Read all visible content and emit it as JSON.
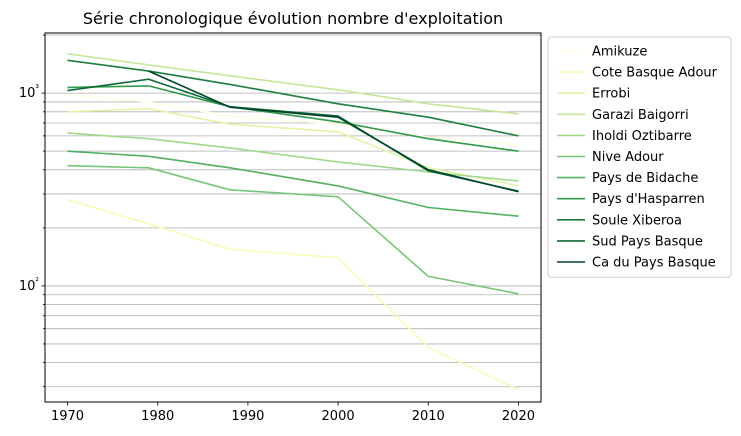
{
  "chart_data": {
    "type": "line",
    "title": "Série chronologique évolution nombre d'exploitation",
    "xlabel": "",
    "ylabel": "",
    "yscale": "log",
    "xlim": [
      1967.5,
      2022.5
    ],
    "ylim": [
      25,
      2050
    ],
    "x": [
      1970,
      1979,
      1988,
      2000,
      2010,
      2020
    ],
    "x_ticks": [
      "1970",
      "1980",
      "1990",
      "2000",
      "2010",
      "2020"
    ],
    "x_tick_values": [
      1970,
      1980,
      1990,
      2000,
      2010,
      2020
    ],
    "y_ticks": [
      "10²",
      "10³"
    ],
    "y_tick_values": [
      100,
      1000
    ],
    "grid": "y-major-and-minor",
    "legend_position": "outside-right",
    "series": [
      {
        "name": "Amikuze",
        "color": "#ffffe5",
        "values": [
          980,
          900,
          760,
          690,
          590,
          540
        ]
      },
      {
        "name": "Cote Basque Adour",
        "color": "#f7fcb9",
        "values": [
          280,
          210,
          155,
          140,
          48,
          29
        ]
      },
      {
        "name": "Errobi",
        "color": "#e4f4a6",
        "values": [
          800,
          830,
          690,
          630,
          410,
          330
        ]
      },
      {
        "name": "Garazi Baigorri",
        "color": "#c6e79a",
        "values": [
          1600,
          1400,
          1230,
          1040,
          880,
          780
        ]
      },
      {
        "name": "Iholdi Oztibarre",
        "color": "#a2d88a",
        "values": [
          620,
          580,
          520,
          440,
          390,
          350
        ]
      },
      {
        "name": "Nive Adour",
        "color": "#78c679",
        "values": [
          420,
          410,
          315,
          290,
          112,
          91
        ]
      },
      {
        "name": "Pays de Bidache",
        "color": "#52b160",
        "values": [
          500,
          470,
          410,
          330,
          255,
          230
        ]
      },
      {
        "name": "Pays d'Hasparren",
        "color": "#33994c",
        "values": [
          1070,
          1090,
          850,
          710,
          580,
          500
        ]
      },
      {
        "name": "Soule Xiberoa",
        "color": "#1c7f3d",
        "values": [
          1480,
          1300,
          1110,
          880,
          750,
          600
        ]
      },
      {
        "name": "Sud Pays Basque",
        "color": "#0d6a37",
        "values": [
          1030,
          1180,
          850,
          760,
          395,
          310
        ]
      },
      {
        "name": "Ca du Pays Basque",
        "color": "#004529",
        "values": [
          null,
          1300,
          845,
          750,
          400,
          308
        ]
      }
    ]
  }
}
